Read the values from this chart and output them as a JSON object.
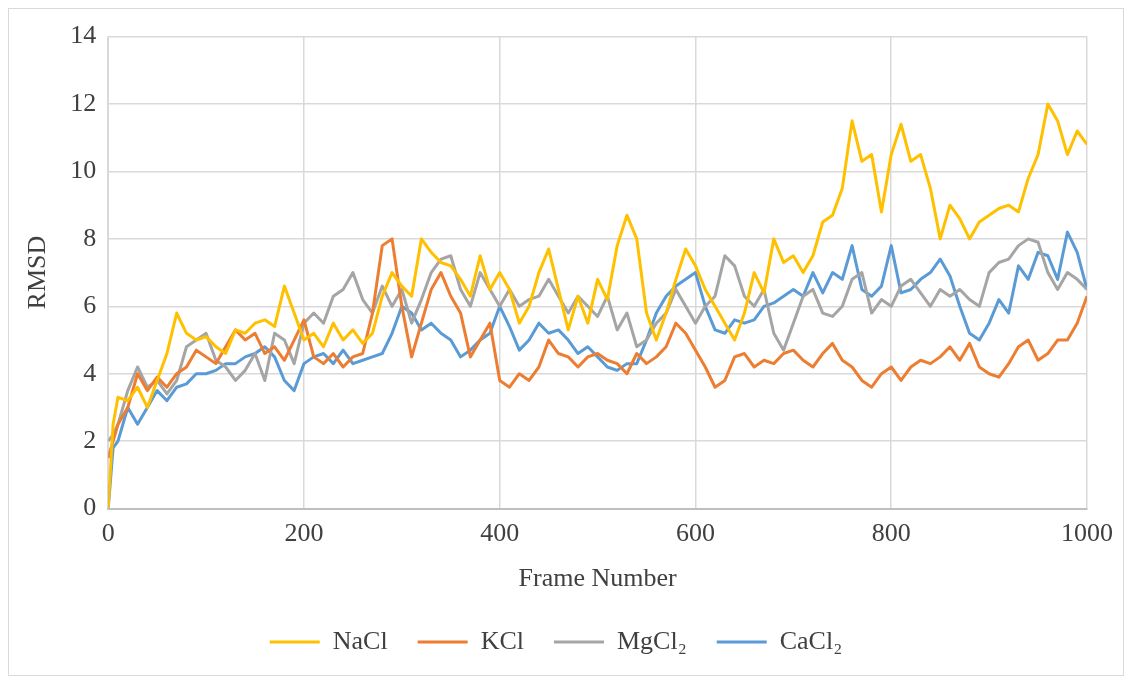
{
  "chart_data": {
    "type": "line",
    "xlabel": "Frame Number",
    "ylabel": "RMSD",
    "x": [
      0,
      5,
      10,
      20,
      30,
      40,
      50,
      60,
      70,
      80,
      90,
      100,
      110,
      120,
      130,
      140,
      150,
      160,
      170,
      180,
      190,
      200,
      210,
      220,
      230,
      240,
      250,
      260,
      270,
      280,
      290,
      300,
      310,
      320,
      330,
      340,
      350,
      360,
      370,
      380,
      390,
      400,
      410,
      420,
      430,
      440,
      450,
      460,
      470,
      480,
      490,
      500,
      510,
      520,
      530,
      540,
      550,
      560,
      570,
      580,
      590,
      600,
      610,
      620,
      630,
      640,
      650,
      660,
      670,
      680,
      690,
      700,
      710,
      720,
      730,
      740,
      750,
      760,
      770,
      780,
      790,
      800,
      810,
      820,
      830,
      840,
      850,
      860,
      870,
      880,
      890,
      900,
      910,
      920,
      930,
      940,
      950,
      960,
      970,
      980,
      990,
      1000
    ],
    "series": [
      {
        "name": "NaCl",
        "color": "#ffc000",
        "values": [
          0,
          2.5,
          3.3,
          3.2,
          3.6,
          3.0,
          3.8,
          4.6,
          5.8,
          5.2,
          5.0,
          5.1,
          4.8,
          4.6,
          5.3,
          5.2,
          5.5,
          5.6,
          5.4,
          6.6,
          5.8,
          5.0,
          5.2,
          4.8,
          5.5,
          5.0,
          5.3,
          4.9,
          5.2,
          6.3,
          7.0,
          6.6,
          6.3,
          8.0,
          7.6,
          7.3,
          7.2,
          6.8,
          6.3,
          7.5,
          6.5,
          7.0,
          6.5,
          5.5,
          6.0,
          7.0,
          7.7,
          6.5,
          5.3,
          6.3,
          5.5,
          6.8,
          6.2,
          7.8,
          8.7,
          8.0,
          5.8,
          5.0,
          5.8,
          6.8,
          7.7,
          7.2,
          6.5,
          6.0,
          5.5,
          5.0,
          5.8,
          7.0,
          6.4,
          8.0,
          7.3,
          7.5,
          7.0,
          7.5,
          8.5,
          8.7,
          9.5,
          11.5,
          10.3,
          10.5,
          8.8,
          10.5,
          11.4,
          10.3,
          10.5,
          9.5,
          8.0,
          9.0,
          8.6,
          8.0,
          8.5,
          8.7,
          8.9,
          9.0,
          8.8,
          9.8,
          10.5,
          12.0,
          11.5,
          10.5,
          11.2,
          10.8
        ]
      },
      {
        "name": "KCl",
        "color": "#ed7d31",
        "values": [
          1.5,
          2.0,
          2.5,
          3.0,
          4.0,
          3.5,
          3.9,
          3.6,
          4.0,
          4.2,
          4.7,
          4.5,
          4.3,
          4.8,
          5.3,
          5.0,
          5.2,
          4.6,
          4.8,
          4.4,
          5.0,
          5.6,
          4.5,
          4.3,
          4.6,
          4.2,
          4.5,
          4.6,
          5.8,
          7.8,
          8.0,
          6.0,
          4.5,
          5.5,
          6.5,
          7.0,
          6.3,
          5.8,
          4.5,
          5.0,
          5.5,
          3.8,
          3.6,
          4.0,
          3.8,
          4.2,
          5.0,
          4.6,
          4.5,
          4.2,
          4.5,
          4.6,
          4.4,
          4.3,
          4.0,
          4.6,
          4.3,
          4.5,
          4.8,
          5.5,
          5.2,
          4.7,
          4.2,
          3.6,
          3.8,
          4.5,
          4.6,
          4.2,
          4.4,
          4.3,
          4.6,
          4.7,
          4.4,
          4.2,
          4.6,
          4.9,
          4.4,
          4.2,
          3.8,
          3.6,
          4.0,
          4.2,
          3.8,
          4.2,
          4.4,
          4.3,
          4.5,
          4.8,
          4.4,
          4.9,
          4.2,
          4.0,
          3.9,
          4.3,
          4.8,
          5.0,
          4.4,
          4.6,
          5.0,
          5.0,
          5.5,
          6.3
        ]
      },
      {
        "name": "MgCl₂",
        "color": "#a5a5a5",
        "values": [
          2.0,
          2.2,
          2.5,
          3.5,
          4.2,
          3.6,
          3.8,
          3.4,
          3.8,
          4.8,
          5.0,
          5.2,
          4.4,
          4.2,
          3.8,
          4.1,
          4.6,
          3.8,
          5.2,
          5.0,
          4.3,
          5.5,
          5.8,
          5.5,
          6.3,
          6.5,
          7.0,
          6.2,
          5.8,
          6.6,
          6.0,
          6.5,
          5.5,
          6.2,
          7.0,
          7.4,
          7.5,
          6.5,
          6.0,
          7.0,
          6.5,
          6.0,
          6.5,
          6.0,
          6.2,
          6.3,
          6.8,
          6.3,
          5.8,
          6.3,
          6.0,
          5.7,
          6.3,
          5.3,
          5.8,
          4.8,
          5.0,
          5.5,
          5.8,
          6.5,
          6.0,
          5.5,
          6.0,
          6.3,
          7.5,
          7.2,
          6.3,
          6.0,
          6.5,
          5.2,
          4.7,
          5.5,
          6.3,
          6.5,
          5.8,
          5.7,
          6.0,
          6.8,
          7.0,
          5.8,
          6.2,
          6.0,
          6.6,
          6.8,
          6.4,
          6.0,
          6.5,
          6.3,
          6.5,
          6.2,
          6.0,
          7.0,
          7.3,
          7.4,
          7.8,
          8.0,
          7.9,
          7.0,
          6.5,
          7.0,
          6.8,
          6.5
        ]
      },
      {
        "name": "CaCl₂",
        "color": "#5b9bd5",
        "values": [
          0,
          1.8,
          2.0,
          3.0,
          2.5,
          3.0,
          3.5,
          3.2,
          3.6,
          3.7,
          4.0,
          4.0,
          4.1,
          4.3,
          4.3,
          4.5,
          4.6,
          4.8,
          4.5,
          3.8,
          3.5,
          4.3,
          4.5,
          4.6,
          4.3,
          4.7,
          4.3,
          4.4,
          4.5,
          4.6,
          5.2,
          6.0,
          5.8,
          5.3,
          5.5,
          5.2,
          5.0,
          4.5,
          4.7,
          5.0,
          5.2,
          6.0,
          5.4,
          4.7,
          5.0,
          5.5,
          5.2,
          5.3,
          5.0,
          4.6,
          4.8,
          4.5,
          4.2,
          4.1,
          4.3,
          4.3,
          5.0,
          5.8,
          6.3,
          6.6,
          6.8,
          7.0,
          6.0,
          5.3,
          5.2,
          5.6,
          5.5,
          5.6,
          6.0,
          6.1,
          6.3,
          6.5,
          6.3,
          7.0,
          6.4,
          7.0,
          6.8,
          7.8,
          6.5,
          6.3,
          6.6,
          7.8,
          6.4,
          6.5,
          6.8,
          7.0,
          7.4,
          6.9,
          6.0,
          5.2,
          5.0,
          5.5,
          6.2,
          5.8,
          7.2,
          6.8,
          7.6,
          7.5,
          6.8,
          8.2,
          7.6,
          6.5
        ]
      }
    ],
    "xlim": [
      0,
      1000
    ],
    "xticks": [
      0,
      200,
      400,
      600,
      800,
      1000
    ],
    "ylim": [
      0,
      14
    ],
    "yticks": [
      0,
      2,
      4,
      6,
      8,
      10,
      12,
      14
    ],
    "grid": true,
    "legend": "bottom",
    "marker": "none",
    "line_style": "solid"
  }
}
